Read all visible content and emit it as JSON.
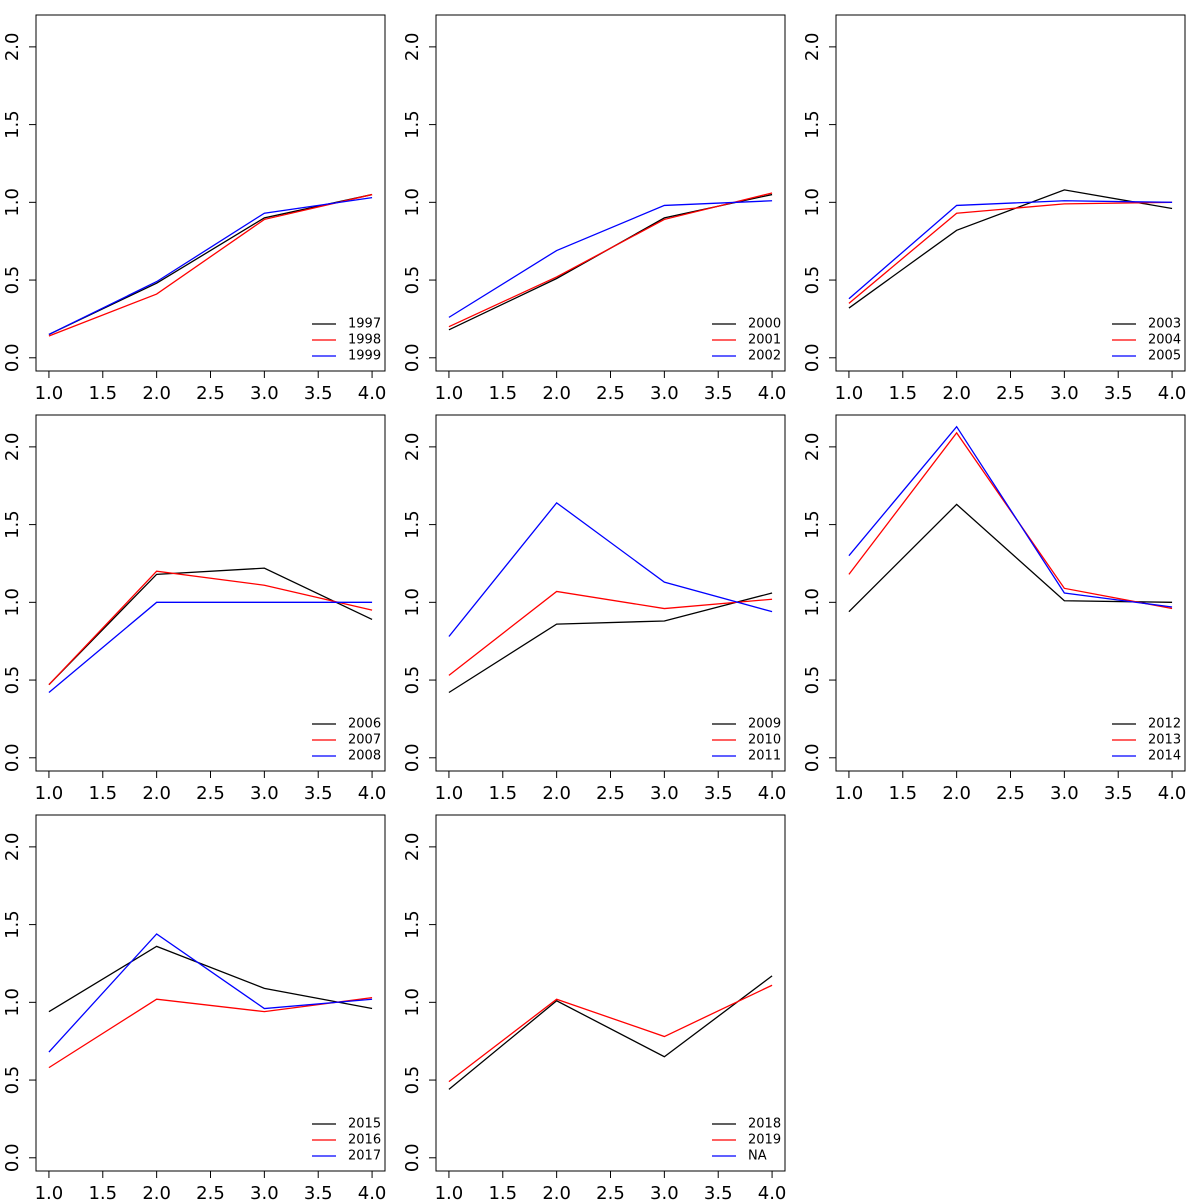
{
  "chart_data": [
    {
      "type": "line",
      "legend": "bottomright",
      "x": [
        1,
        2,
        3,
        4
      ],
      "xlim": [
        0.88,
        4.12
      ],
      "ylim": [
        -0.085,
        2.205
      ],
      "xticks": [
        {
          "value": 1,
          "label": "1.0"
        },
        {
          "value": 1.5,
          "label": "1.5"
        },
        {
          "value": 2,
          "label": "2.0"
        },
        {
          "value": 2.5,
          "label": "2.5"
        },
        {
          "value": 3,
          "label": "3.0"
        },
        {
          "value": 3.5,
          "label": "3.5"
        },
        {
          "value": 4,
          "label": "4.0"
        }
      ],
      "yticks": [
        {
          "value": 0,
          "label": "0.0"
        },
        {
          "value": 0.5,
          "label": "0.5"
        },
        {
          "value": 1,
          "label": "1.0"
        },
        {
          "value": 1.5,
          "label": "1.5"
        },
        {
          "value": 2,
          "label": "2.0"
        }
      ],
      "series": [
        {
          "name": "1997",
          "color": "#000000",
          "values": [
            0.15,
            0.48,
            0.9,
            1.05
          ]
        },
        {
          "name": "1998",
          "color": "#ff0000",
          "values": [
            0.14,
            0.41,
            0.89,
            1.05
          ]
        },
        {
          "name": "1999",
          "color": "#0000ff",
          "values": [
            0.15,
            0.49,
            0.93,
            1.03
          ]
        }
      ]
    },
    {
      "type": "line",
      "legend": "bottomright",
      "x": [
        1,
        2,
        3,
        4
      ],
      "xlim": [
        0.88,
        4.12
      ],
      "ylim": [
        -0.085,
        2.205
      ],
      "xticks": [
        {
          "value": 1,
          "label": "1.0"
        },
        {
          "value": 1.5,
          "label": "1.5"
        },
        {
          "value": 2,
          "label": "2.0"
        },
        {
          "value": 2.5,
          "label": "2.5"
        },
        {
          "value": 3,
          "label": "3.0"
        },
        {
          "value": 3.5,
          "label": "3.5"
        },
        {
          "value": 4,
          "label": "4.0"
        }
      ],
      "yticks": [
        {
          "value": 0,
          "label": "0.0"
        },
        {
          "value": 0.5,
          "label": "0.5"
        },
        {
          "value": 1,
          "label": "1.0"
        },
        {
          "value": 1.5,
          "label": "1.5"
        },
        {
          "value": 2,
          "label": "2.0"
        }
      ],
      "series": [
        {
          "name": "2000",
          "color": "#000000",
          "values": [
            0.18,
            0.51,
            0.9,
            1.05
          ]
        },
        {
          "name": "2001",
          "color": "#ff0000",
          "values": [
            0.2,
            0.52,
            0.89,
            1.06
          ]
        },
        {
          "name": "2002",
          "color": "#0000ff",
          "values": [
            0.26,
            0.69,
            0.98,
            1.01
          ]
        }
      ]
    },
    {
      "type": "line",
      "legend": "bottomright",
      "x": [
        1,
        2,
        3,
        4
      ],
      "xlim": [
        0.88,
        4.12
      ],
      "ylim": [
        -0.085,
        2.205
      ],
      "xticks": [
        {
          "value": 1,
          "label": "1.0"
        },
        {
          "value": 1.5,
          "label": "1.5"
        },
        {
          "value": 2,
          "label": "2.0"
        },
        {
          "value": 2.5,
          "label": "2.5"
        },
        {
          "value": 3,
          "label": "3.0"
        },
        {
          "value": 3.5,
          "label": "3.5"
        },
        {
          "value": 4,
          "label": "4.0"
        }
      ],
      "yticks": [
        {
          "value": 0,
          "label": "0.0"
        },
        {
          "value": 0.5,
          "label": "0.5"
        },
        {
          "value": 1,
          "label": "1.0"
        },
        {
          "value": 1.5,
          "label": "1.5"
        },
        {
          "value": 2,
          "label": "2.0"
        }
      ],
      "series": [
        {
          "name": "2003",
          "color": "#000000",
          "values": [
            0.32,
            0.82,
            1.08,
            0.96
          ]
        },
        {
          "name": "2004",
          "color": "#ff0000",
          "values": [
            0.35,
            0.93,
            0.99,
            1.0
          ]
        },
        {
          "name": "2005",
          "color": "#0000ff",
          "values": [
            0.38,
            0.98,
            1.01,
            1.0
          ]
        }
      ]
    },
    {
      "type": "line",
      "legend": "bottomright",
      "x": [
        1,
        2,
        3,
        4
      ],
      "xlim": [
        0.88,
        4.12
      ],
      "ylim": [
        -0.085,
        2.205
      ],
      "xticks": [
        {
          "value": 1,
          "label": "1.0"
        },
        {
          "value": 1.5,
          "label": "1.5"
        },
        {
          "value": 2,
          "label": "2.0"
        },
        {
          "value": 2.5,
          "label": "2.5"
        },
        {
          "value": 3,
          "label": "3.0"
        },
        {
          "value": 3.5,
          "label": "3.5"
        },
        {
          "value": 4,
          "label": "4.0"
        }
      ],
      "yticks": [
        {
          "value": 0,
          "label": "0.0"
        },
        {
          "value": 0.5,
          "label": "0.5"
        },
        {
          "value": 1,
          "label": "1.0"
        },
        {
          "value": 1.5,
          "label": "1.5"
        },
        {
          "value": 2,
          "label": "2.0"
        }
      ],
      "series": [
        {
          "name": "2006",
          "color": "#000000",
          "values": [
            0.47,
            1.18,
            1.22,
            0.89
          ]
        },
        {
          "name": "2007",
          "color": "#ff0000",
          "values": [
            0.47,
            1.2,
            1.11,
            0.95
          ]
        },
        {
          "name": "2008",
          "color": "#0000ff",
          "values": [
            0.42,
            1.0,
            1.0,
            1.0
          ]
        }
      ]
    },
    {
      "type": "line",
      "legend": "bottomright",
      "x": [
        1,
        2,
        3,
        4
      ],
      "xlim": [
        0.88,
        4.12
      ],
      "ylim": [
        -0.085,
        2.205
      ],
      "xticks": [
        {
          "value": 1,
          "label": "1.0"
        },
        {
          "value": 1.5,
          "label": "1.5"
        },
        {
          "value": 2,
          "label": "2.0"
        },
        {
          "value": 2.5,
          "label": "2.5"
        },
        {
          "value": 3,
          "label": "3.0"
        },
        {
          "value": 3.5,
          "label": "3.5"
        },
        {
          "value": 4,
          "label": "4.0"
        }
      ],
      "yticks": [
        {
          "value": 0,
          "label": "0.0"
        },
        {
          "value": 0.5,
          "label": "0.5"
        },
        {
          "value": 1,
          "label": "1.0"
        },
        {
          "value": 1.5,
          "label": "1.5"
        },
        {
          "value": 2,
          "label": "2.0"
        }
      ],
      "series": [
        {
          "name": "2009",
          "color": "#000000",
          "values": [
            0.42,
            0.86,
            0.88,
            1.06
          ]
        },
        {
          "name": "2010",
          "color": "#ff0000",
          "values": [
            0.53,
            1.07,
            0.96,
            1.02
          ]
        },
        {
          "name": "2011",
          "color": "#0000ff",
          "values": [
            0.78,
            1.64,
            1.13,
            0.94
          ]
        }
      ]
    },
    {
      "type": "line",
      "legend": "bottomright",
      "x": [
        1,
        2,
        3,
        4
      ],
      "xlim": [
        0.88,
        4.12
      ],
      "ylim": [
        -0.085,
        2.205
      ],
      "xticks": [
        {
          "value": 1,
          "label": "1.0"
        },
        {
          "value": 1.5,
          "label": "1.5"
        },
        {
          "value": 2,
          "label": "2.0"
        },
        {
          "value": 2.5,
          "label": "2.5"
        },
        {
          "value": 3,
          "label": "3.0"
        },
        {
          "value": 3.5,
          "label": "3.5"
        },
        {
          "value": 4,
          "label": "4.0"
        }
      ],
      "yticks": [
        {
          "value": 0,
          "label": "0.0"
        },
        {
          "value": 0.5,
          "label": "0.5"
        },
        {
          "value": 1,
          "label": "1.0"
        },
        {
          "value": 1.5,
          "label": "1.5"
        },
        {
          "value": 2,
          "label": "2.0"
        }
      ],
      "series": [
        {
          "name": "2012",
          "color": "#000000",
          "values": [
            0.94,
            1.63,
            1.01,
            1.0
          ]
        },
        {
          "name": "2013",
          "color": "#ff0000",
          "values": [
            1.18,
            2.09,
            1.09,
            0.96
          ]
        },
        {
          "name": "2014",
          "color": "#0000ff",
          "values": [
            1.3,
            2.13,
            1.06,
            0.97
          ]
        }
      ]
    },
    {
      "type": "line",
      "legend": "bottomright",
      "x": [
        1,
        2,
        3,
        4
      ],
      "xlim": [
        0.88,
        4.12
      ],
      "ylim": [
        -0.085,
        2.205
      ],
      "xticks": [
        {
          "value": 1,
          "label": "1.0"
        },
        {
          "value": 1.5,
          "label": "1.5"
        },
        {
          "value": 2,
          "label": "2.0"
        },
        {
          "value": 2.5,
          "label": "2.5"
        },
        {
          "value": 3,
          "label": "3.0"
        },
        {
          "value": 3.5,
          "label": "3.5"
        },
        {
          "value": 4,
          "label": "4.0"
        }
      ],
      "yticks": [
        {
          "value": 0,
          "label": "0.0"
        },
        {
          "value": 0.5,
          "label": "0.5"
        },
        {
          "value": 1,
          "label": "1.0"
        },
        {
          "value": 1.5,
          "label": "1.5"
        },
        {
          "value": 2,
          "label": "2.0"
        }
      ],
      "series": [
        {
          "name": "2015",
          "color": "#000000",
          "values": [
            0.94,
            1.36,
            1.09,
            0.96
          ]
        },
        {
          "name": "2016",
          "color": "#ff0000",
          "values": [
            0.58,
            1.02,
            0.94,
            1.03
          ]
        },
        {
          "name": "2017",
          "color": "#0000ff",
          "values": [
            0.68,
            1.44,
            0.96,
            1.02
          ]
        }
      ]
    },
    {
      "type": "line",
      "legend": "bottomright",
      "x": [
        1,
        2,
        3,
        4
      ],
      "xlim": [
        0.88,
        4.12
      ],
      "ylim": [
        -0.085,
        2.205
      ],
      "xticks": [
        {
          "value": 1,
          "label": "1.0"
        },
        {
          "value": 1.5,
          "label": "1.5"
        },
        {
          "value": 2,
          "label": "2.0"
        },
        {
          "value": 2.5,
          "label": "2.5"
        },
        {
          "value": 3,
          "label": "3.0"
        },
        {
          "value": 3.5,
          "label": "3.5"
        },
        {
          "value": 4,
          "label": "4.0"
        }
      ],
      "yticks": [
        {
          "value": 0,
          "label": "0.0"
        },
        {
          "value": 0.5,
          "label": "0.5"
        },
        {
          "value": 1,
          "label": "1.0"
        },
        {
          "value": 1.5,
          "label": "1.5"
        },
        {
          "value": 2,
          "label": "2.0"
        }
      ],
      "series": [
        {
          "name": "2018",
          "color": "#000000",
          "values": [
            0.44,
            1.01,
            0.65,
            1.17
          ]
        },
        {
          "name": "2019",
          "color": "#ff0000",
          "values": [
            0.49,
            1.02,
            0.78,
            1.11
          ]
        },
        {
          "name": "NA",
          "color": "#0000ff",
          "values": [
            null,
            null,
            null,
            null
          ]
        }
      ]
    }
  ]
}
